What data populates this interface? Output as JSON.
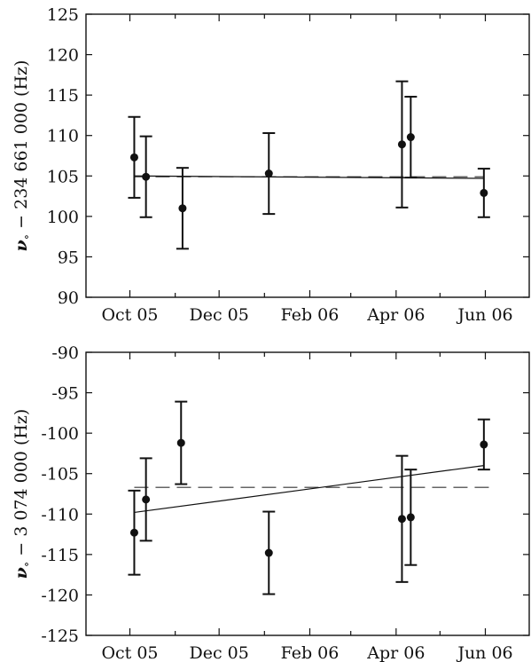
{
  "chart_data": [
    {
      "type": "scatter",
      "ylabel_symbol": "ν",
      "ylabel_subscript": "∘",
      "ylabel_text": " − 234 661 000 (Hz)",
      "ylim": [
        90,
        125
      ],
      "yticks": [
        90,
        95,
        100,
        105,
        110,
        115,
        120,
        125
      ],
      "xlim": [
        "2005-09-01",
        "2006-07-01"
      ],
      "xticks": [
        {
          "date": "2005-10-01",
          "label": "Oct 05"
        },
        {
          "date": "2005-12-01",
          "label": "Dec 05"
        },
        {
          "date": "2006-02-01",
          "label": "Feb 06"
        },
        {
          "date": "2006-04-01",
          "label": "Apr 06"
        },
        {
          "date": "2006-06-01",
          "label": "Jun 06"
        }
      ],
      "points": [
        {
          "x": "2005-10-04",
          "y": 107.3,
          "err": 5.0
        },
        {
          "x": "2005-10-12",
          "y": 104.9,
          "err": 5.0
        },
        {
          "x": "2005-11-06",
          "y": 101.0,
          "err": 5.0
        },
        {
          "x": "2006-01-04",
          "y": 105.3,
          "err": 5.0
        },
        {
          "x": "2006-04-05",
          "y": 108.9,
          "err": 7.8
        },
        {
          "x": "2006-04-11",
          "y": 109.8,
          "err": 5.0
        },
        {
          "x": "2006-05-31",
          "y": 102.9,
          "err": 3.0
        }
      ],
      "fit_solid": [
        {
          "x": "2005-10-04",
          "y": 105.0
        },
        {
          "x": "2006-05-31",
          "y": 104.7
        }
      ],
      "fit_dashed": [
        {
          "x": "2005-10-04",
          "y": 104.9
        },
        {
          "x": "2006-05-31",
          "y": 104.9
        }
      ]
    },
    {
      "type": "scatter",
      "ylabel_symbol": "ν",
      "ylabel_subscript": "∘",
      "ylabel_text": " − 3 074 000 (Hz)",
      "ylim": [
        -125,
        -90
      ],
      "yticks": [
        -125,
        -120,
        -115,
        -110,
        -105,
        -100,
        -95,
        -90
      ],
      "xlim": [
        "2005-09-01",
        "2006-07-01"
      ],
      "xticks": [
        {
          "date": "2005-10-01",
          "label": "Oct 05"
        },
        {
          "date": "2005-12-01",
          "label": "Dec 05"
        },
        {
          "date": "2006-02-01",
          "label": "Feb 06"
        },
        {
          "date": "2006-04-01",
          "label": "Apr 06"
        },
        {
          "date": "2006-06-01",
          "label": "Jun 06"
        }
      ],
      "points": [
        {
          "x": "2005-10-04",
          "y": -112.3,
          "err": 5.2
        },
        {
          "x": "2005-10-12",
          "y": -108.2,
          "err": 5.1
        },
        {
          "x": "2005-11-05",
          "y": -101.2,
          "err": 5.1
        },
        {
          "x": "2006-01-04",
          "y": -114.8,
          "err": 5.1
        },
        {
          "x": "2006-04-05",
          "y": -110.6,
          "err": 7.8
        },
        {
          "x": "2006-04-11",
          "y": -110.4,
          "err": 5.9
        },
        {
          "x": "2006-05-31",
          "y": -101.4,
          "err": 3.1
        }
      ],
      "fit_solid": [
        {
          "x": "2005-10-04",
          "y": -109.8
        },
        {
          "x": "2006-05-31",
          "y": -104.0
        }
      ],
      "fit_dashed": [
        {
          "x": "2005-10-04",
          "y": -106.7
        },
        {
          "x": "2006-06-08",
          "y": -106.7
        }
      ]
    }
  ]
}
